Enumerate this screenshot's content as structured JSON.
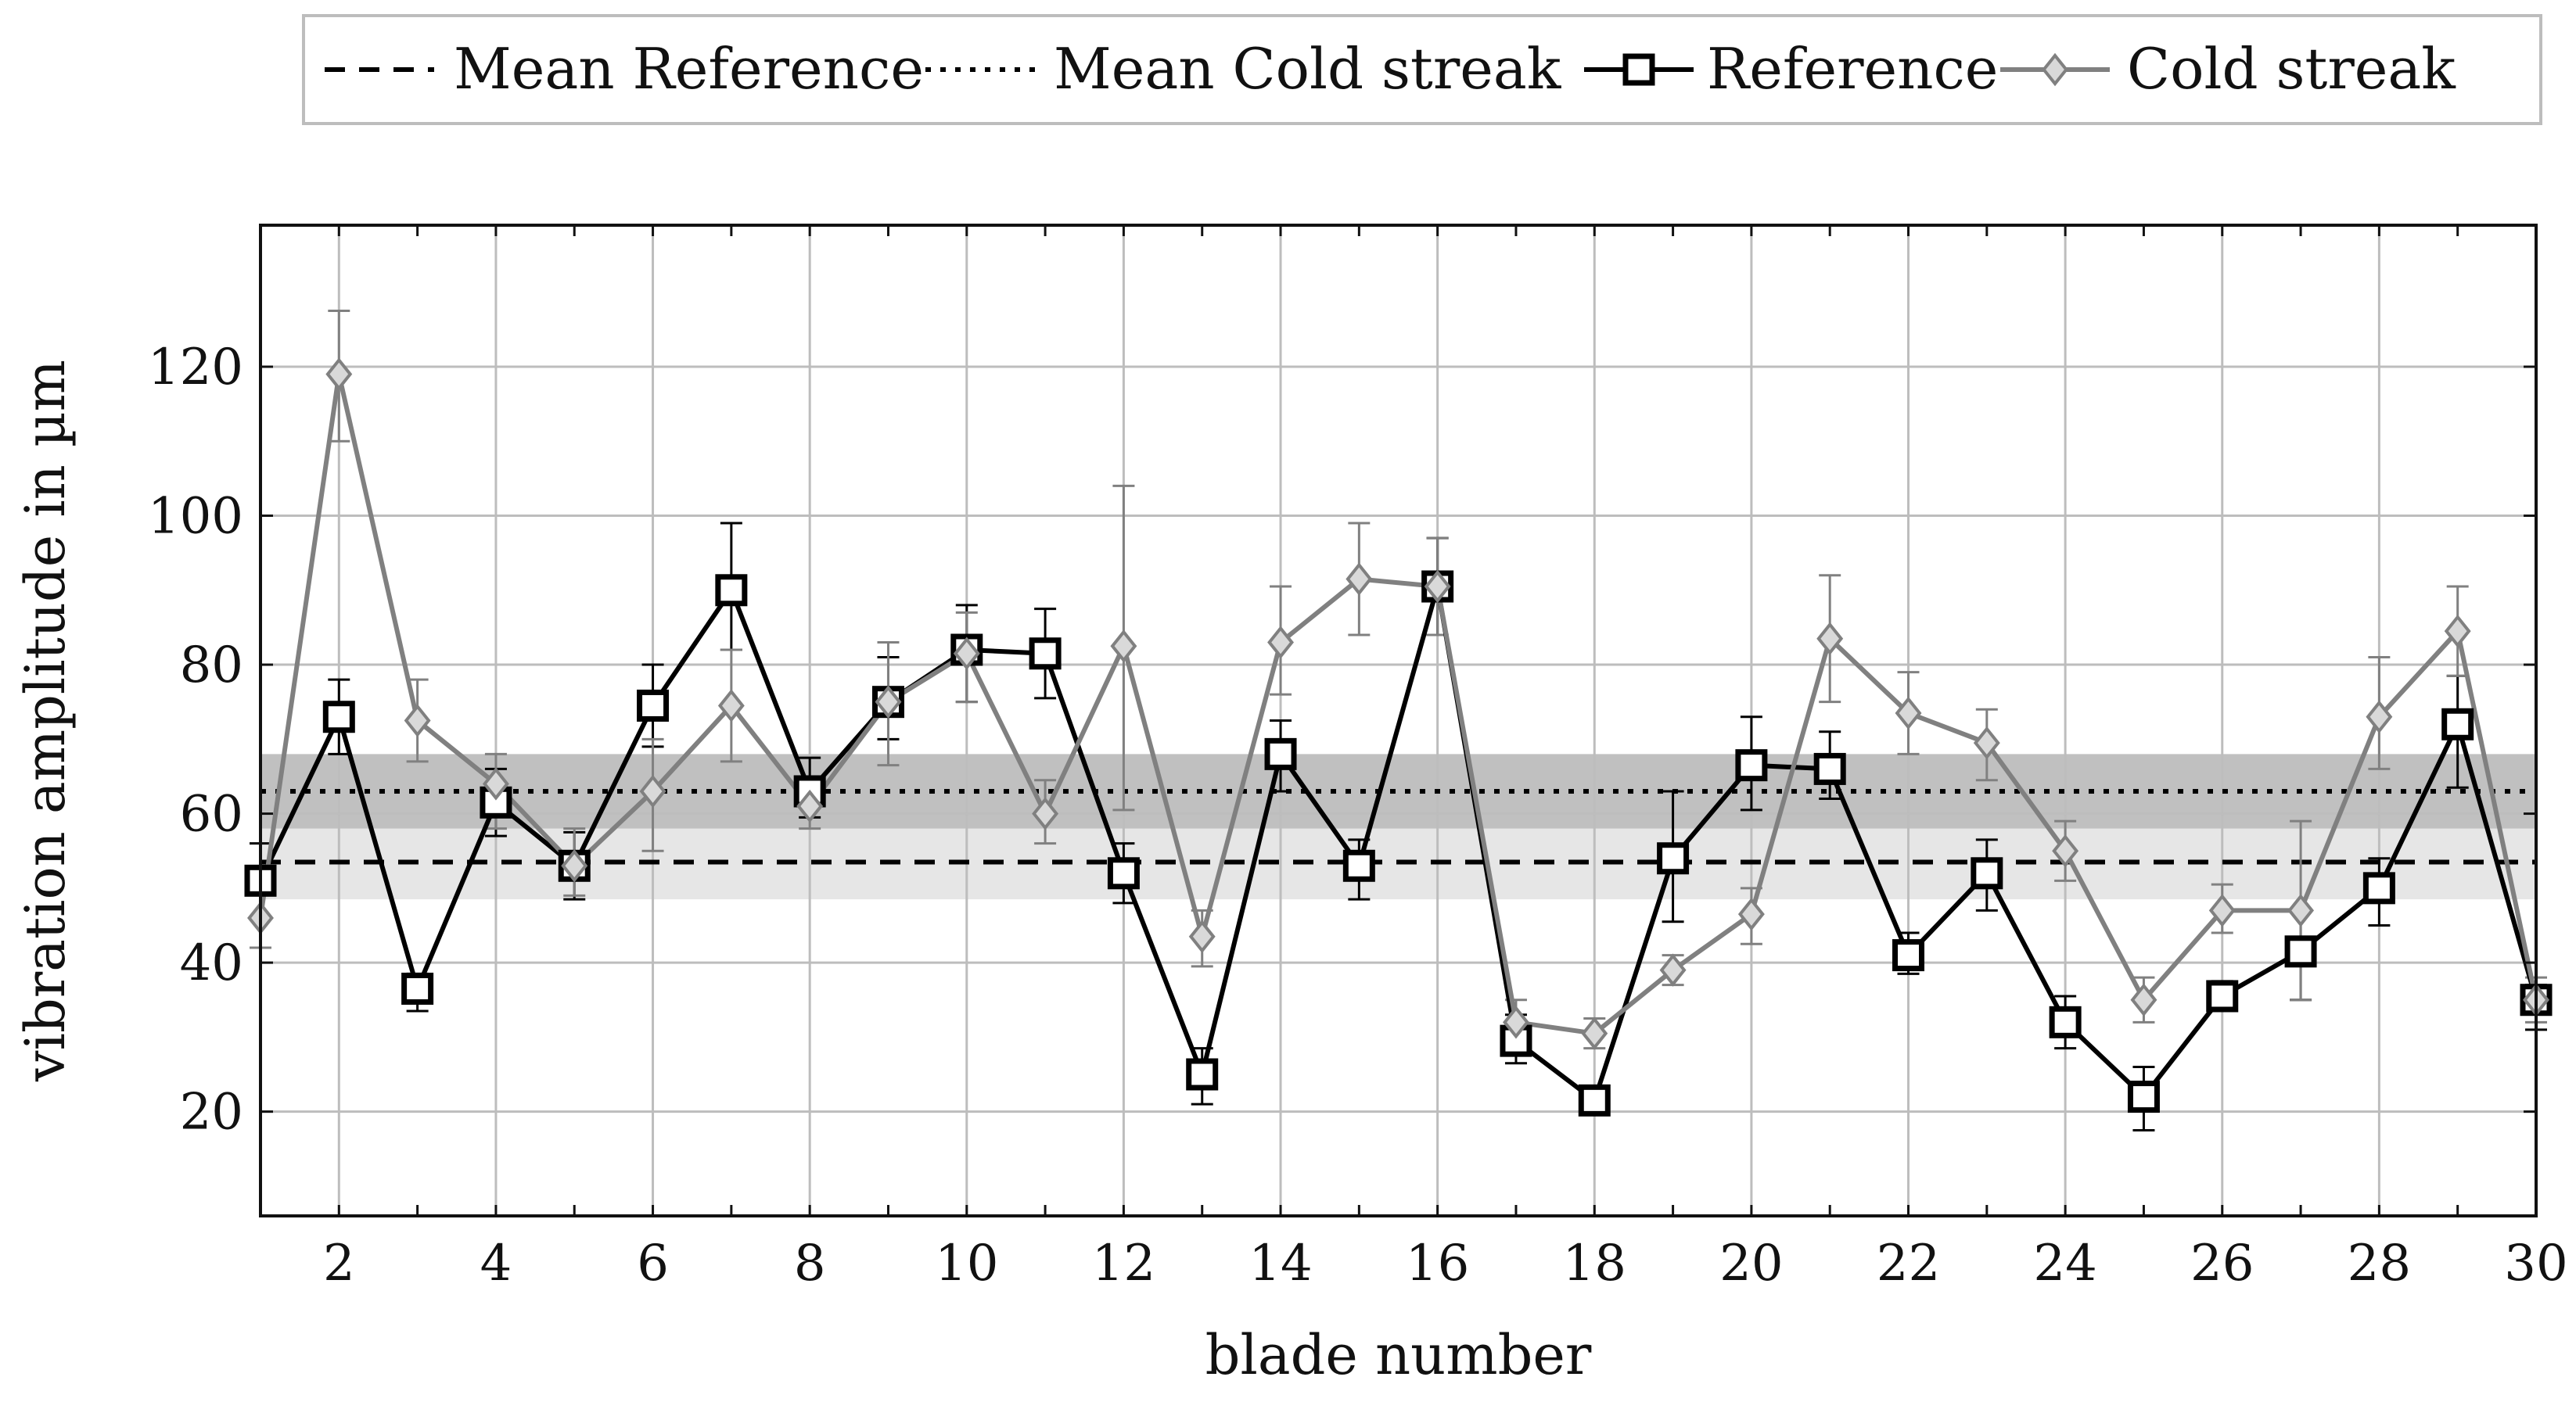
{
  "chart_data": {
    "type": "line",
    "xlabel": "blade number",
    "ylabel": "vibration amplitude in µm",
    "xlim": [
      1,
      30
    ],
    "ylim": [
      6,
      139
    ],
    "x_ticks": [
      2,
      4,
      6,
      8,
      10,
      12,
      14,
      16,
      18,
      20,
      22,
      24,
      26,
      28,
      30
    ],
    "y_ticks": [
      20,
      40,
      60,
      80,
      100,
      120
    ],
    "x_grid_every": 2,
    "grid": true,
    "legend_position": "top",
    "legend": [
      {
        "label": "Mean Reference",
        "style": "dashed",
        "color": "#000000"
      },
      {
        "label": "Mean Cold streak",
        "style": "dotted",
        "color": "#000000"
      },
      {
        "label": "Reference",
        "style": "solid-square",
        "color": "#000000"
      },
      {
        "label": "Cold streak",
        "style": "solid-diamond",
        "color": "#808080"
      }
    ],
    "means": [
      {
        "name": "Mean Reference",
        "value": 53.5,
        "band": [
          48.5,
          58
        ],
        "band_color": "#e6e6e6",
        "line_style": "dashed"
      },
      {
        "name": "Mean Cold streak",
        "value": 63,
        "band": [
          58,
          68
        ],
        "band_color": "#c0c0c0",
        "line_style": "dotted"
      }
    ],
    "x": [
      1,
      2,
      3,
      4,
      5,
      6,
      7,
      8,
      9,
      10,
      11,
      12,
      13,
      14,
      15,
      16,
      17,
      18,
      19,
      20,
      21,
      22,
      23,
      24,
      25,
      26,
      27,
      28,
      29,
      30
    ],
    "series": [
      {
        "name": "Reference",
        "color": "#000000",
        "marker": "square",
        "values": [
          51,
          73,
          36.5,
          61.5,
          53,
          74.5,
          90,
          63,
          75,
          82,
          81.5,
          52,
          25,
          68,
          53,
          90.5,
          29.5,
          21.5,
          54,
          66.5,
          66,
          41,
          52,
          32,
          22,
          35.5,
          41.5,
          50,
          72,
          35
        ],
        "err_low": [
          46,
          68,
          33.5,
          57,
          48.5,
          69,
          82,
          59.5,
          70,
          75,
          75.5,
          48,
          21,
          63,
          48.5,
          84,
          26.5,
          20,
          45.5,
          60.5,
          62,
          38.5,
          47,
          28.5,
          17.5,
          34,
          35,
          45,
          63.5,
          31
        ],
        "err_high": [
          56,
          78,
          38.5,
          66,
          57.5,
          80,
          99,
          67.5,
          81,
          88,
          87.5,
          56,
          28.5,
          72.5,
          56.5,
          97,
          33,
          23,
          63,
          73,
          71,
          44,
          56.5,
          35.5,
          26,
          37.5,
          47,
          54,
          78.5,
          37
        ]
      },
      {
        "name": "Cold streak",
        "color": "#808080",
        "marker": "diamond",
        "values": [
          46,
          119,
          72.5,
          64,
          53,
          63,
          74.5,
          61,
          75,
          81.5,
          60,
          82.5,
          43.5,
          83,
          91.5,
          90.5,
          32,
          30.5,
          39,
          46.5,
          83.5,
          73.5,
          69.5,
          55,
          35,
          47,
          47,
          73,
          84.5,
          35
        ],
        "err_low": [
          42,
          110,
          67,
          58,
          49,
          55,
          67,
          58,
          66.5,
          75,
          56,
          60.5,
          39.5,
          76,
          84,
          84,
          28,
          28.5,
          37,
          42.5,
          75,
          68,
          64.5,
          51,
          32,
          44,
          35,
          66,
          78.5,
          32
        ],
        "err_high": [
          50,
          127.5,
          78,
          68,
          58,
          70,
          82,
          64,
          83,
          87,
          64.5,
          104,
          47,
          90.5,
          99,
          97,
          35,
          32.5,
          41,
          50,
          92,
          79,
          74,
          59,
          38,
          50.5,
          59,
          81,
          90.5,
          38
        ]
      }
    ]
  }
}
